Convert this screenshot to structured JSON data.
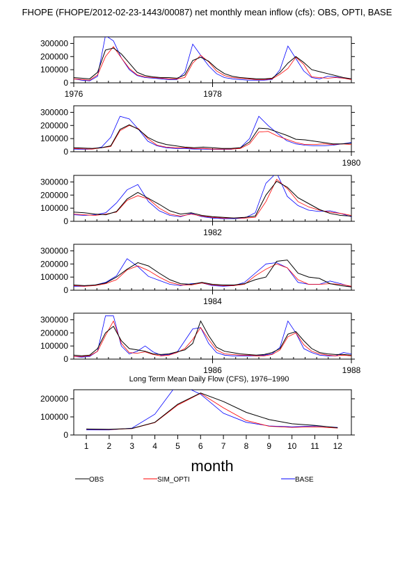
{
  "title": "FHOPE (FHOPE/2012-02-23-1443/00087) net monthly mean inflow (cfs): OBS, OPTI, BASE",
  "colors": {
    "obs": "#000000",
    "sim_opti": "#ff0000",
    "base": "#0000ff"
  },
  "chart_data": [
    {
      "type": "line",
      "panel": 1,
      "x_start": "1976-01",
      "x_tick_labels": [
        "1976",
        "1978"
      ],
      "ylim": [
        0,
        350000
      ],
      "y_ticks": [
        0,
        100000,
        200000,
        300000
      ],
      "y_tick_labels": [
        "0",
        "100000",
        "200000",
        "300000"
      ],
      "series": [
        {
          "name": "OBS",
          "values": [
            40000,
            35000,
            30000,
            80000,
            250000,
            265000,
            220000,
            150000,
            80000,
            55000,
            45000,
            40000,
            40000,
            35000,
            60000,
            170000,
            195000,
            165000,
            110000,
            70000,
            50000,
            40000,
            35000,
            30000,
            30000,
            35000,
            80000,
            150000,
            200000,
            155000,
            100000,
            85000,
            70000,
            55000,
            40000,
            30000
          ]
        },
        {
          "name": "SIM_OPTI",
          "values": [
            30000,
            25000,
            20000,
            60000,
            200000,
            275000,
            190000,
            110000,
            60000,
            45000,
            40000,
            35000,
            30000,
            30000,
            40000,
            150000,
            210000,
            160000,
            90000,
            55000,
            40000,
            35000,
            30000,
            25000,
            25000,
            30000,
            65000,
            110000,
            195000,
            140000,
            45000,
            40000,
            35000,
            40000,
            35000,
            25000
          ]
        },
        {
          "name": "BASE",
          "values": [
            30000,
            20000,
            15000,
            50000,
            360000,
            320000,
            190000,
            100000,
            55000,
            40000,
            35000,
            30000,
            25000,
            25000,
            80000,
            295000,
            210000,
            130000,
            70000,
            40000,
            30000,
            25000,
            20000,
            20000,
            20000,
            25000,
            100000,
            280000,
            185000,
            90000,
            40000,
            30000,
            50000,
            45000,
            35000,
            30000
          ]
        }
      ]
    },
    {
      "type": "line",
      "panel": 2,
      "x_start": "1979-01",
      "x_tick_labels": [
        "1980"
      ],
      "ylim": [
        0,
        350000
      ],
      "y_ticks": [
        0,
        100000,
        200000,
        300000
      ],
      "y_tick_labels": [
        "0",
        "100000",
        "200000",
        "300000"
      ],
      "series": [
        {
          "name": "OBS",
          "values": [
            30000,
            28000,
            25000,
            30000,
            45000,
            170000,
            205000,
            170000,
            110000,
            75000,
            55000,
            45000,
            35000,
            30000,
            35000,
            30000,
            25000,
            25000,
            30000,
            75000,
            180000,
            175000,
            150000,
            125000,
            95000,
            90000,
            80000,
            70000,
            60000,
            60000,
            65000
          ]
        },
        {
          "name": "SIM_OPTI",
          "values": [
            25000,
            22000,
            20000,
            30000,
            40000,
            160000,
            200000,
            175000,
            100000,
            50000,
            35000,
            30000,
            30000,
            25000,
            25000,
            20000,
            20000,
            20000,
            25000,
            60000,
            150000,
            155000,
            120000,
            95000,
            70000,
            55000,
            55000,
            60000,
            55000,
            60000,
            55000
          ]
        },
        {
          "name": "BASE",
          "values": [
            20000,
            18000,
            20000,
            35000,
            110000,
            270000,
            250000,
            170000,
            80000,
            45000,
            30000,
            25000,
            25000,
            20000,
            20000,
            18000,
            18000,
            18000,
            30000,
            100000,
            270000,
            200000,
            140000,
            85000,
            60000,
            50000,
            45000,
            45000,
            50000,
            60000,
            70000
          ]
        }
      ]
    },
    {
      "type": "line",
      "panel": 3,
      "x_start": "1981-07",
      "x_tick_labels": [
        "1982"
      ],
      "ylim": [
        0,
        350000
      ],
      "y_ticks": [
        0,
        100000,
        200000,
        300000
      ],
      "y_tick_labels": [
        "0",
        "100000",
        "200000",
        "300000"
      ],
      "series": [
        {
          "name": "OBS",
          "values": [
            70000,
            65000,
            55000,
            50000,
            75000,
            170000,
            220000,
            175000,
            130000,
            80000,
            55000,
            65000,
            45000,
            35000,
            30000,
            25000,
            30000,
            40000,
            200000,
            305000,
            260000,
            180000,
            135000,
            90000,
            60000,
            45000,
            40000
          ]
        },
        {
          "name": "SIM_OPTI",
          "values": [
            55000,
            50000,
            45000,
            55000,
            70000,
            160000,
            195000,
            170000,
            100000,
            55000,
            40000,
            55000,
            40000,
            30000,
            25000,
            25000,
            25000,
            30000,
            150000,
            320000,
            250000,
            150000,
            110000,
            85000,
            70000,
            60000,
            45000
          ]
        },
        {
          "name": "BASE",
          "values": [
            50000,
            45000,
            50000,
            65000,
            140000,
            240000,
            280000,
            150000,
            80000,
            45000,
            35000,
            60000,
            35000,
            25000,
            20000,
            20000,
            25000,
            65000,
            290000,
            370000,
            190000,
            120000,
            85000,
            75000,
            80000,
            60000,
            35000
          ]
        }
      ]
    },
    {
      "type": "line",
      "panel": 4,
      "x_start": "1983-07",
      "x_tick_labels": [
        "1984"
      ],
      "ylim": [
        0,
        350000
      ],
      "y_ticks": [
        0,
        100000,
        200000,
        300000
      ],
      "y_tick_labels": [
        "0",
        "100000",
        "200000",
        "300000"
      ],
      "series": [
        {
          "name": "OBS",
          "values": [
            40000,
            35000,
            40000,
            55000,
            100000,
            160000,
            210000,
            185000,
            130000,
            80000,
            50000,
            45000,
            60000,
            45000,
            40000,
            40000,
            50000,
            80000,
            100000,
            220000,
            230000,
            130000,
            100000,
            90000,
            50000,
            35000,
            25000
          ]
        },
        {
          "name": "SIM_OPTI",
          "values": [
            35000,
            30000,
            35000,
            50000,
            80000,
            155000,
            185000,
            150000,
            100000,
            60000,
            40000,
            40000,
            55000,
            40000,
            35000,
            35000,
            45000,
            110000,
            160000,
            200000,
            170000,
            80000,
            45000,
            45000,
            50000,
            45000,
            30000
          ]
        },
        {
          "name": "BASE",
          "values": [
            30000,
            30000,
            40000,
            60000,
            110000,
            240000,
            180000,
            105000,
            75000,
            45000,
            35000,
            50000,
            55000,
            35000,
            30000,
            35000,
            60000,
            130000,
            200000,
            210000,
            170000,
            60000,
            45000,
            45000,
            70000,
            50000,
            25000
          ]
        }
      ]
    },
    {
      "type": "line",
      "panel": 5,
      "x_start": "1985-01",
      "x_tick_labels": [
        "1986",
        "1988"
      ],
      "ylim": [
        0,
        350000
      ],
      "y_ticks": [
        0,
        100000,
        200000,
        300000
      ],
      "y_tick_labels": [
        "0",
        "100000",
        "200000",
        "300000"
      ],
      "series": [
        {
          "name": "OBS",
          "values": [
            30000,
            25000,
            30000,
            80000,
            200000,
            250000,
            140000,
            80000,
            70000,
            60000,
            40000,
            35000,
            40000,
            55000,
            70000,
            120000,
            290000,
            180000,
            90000,
            60000,
            50000,
            40000,
            35000,
            30000,
            35000,
            50000,
            80000,
            190000,
            210000,
            140000,
            80000,
            50000,
            40000,
            35000,
            35000,
            30000
          ]
        },
        {
          "name": "SIM_OPTI",
          "values": [
            20000,
            20000,
            25000,
            60000,
            180000,
            290000,
            120000,
            50000,
            45000,
            55000,
            35000,
            25000,
            30000,
            50000,
            80000,
            150000,
            240000,
            150000,
            70000,
            40000,
            35000,
            30000,
            30000,
            25000,
            25000,
            35000,
            70000,
            170000,
            200000,
            110000,
            60000,
            40000,
            30000,
            25000,
            30000,
            25000
          ]
        },
        {
          "name": "BASE",
          "values": [
            20000,
            15000,
            20000,
            60000,
            330000,
            330000,
            100000,
            40000,
            60000,
            100000,
            55000,
            30000,
            35000,
            50000,
            140000,
            230000,
            240000,
            120000,
            50000,
            30000,
            25000,
            25000,
            25000,
            25000,
            30000,
            40000,
            90000,
            290000,
            200000,
            80000,
            50000,
            30000,
            25000,
            25000,
            50000,
            40000
          ]
        }
      ]
    },
    {
      "type": "line",
      "panel": 6,
      "title": "Long Term Mean Daily Flow (CFS), 1976–1990",
      "xlabel": "month",
      "categories": [
        1,
        2,
        3,
        4,
        5,
        6,
        7,
        8,
        9,
        10,
        11,
        12
      ],
      "x_tick_labels": [
        "1",
        "2",
        "3",
        "4",
        "5",
        "6",
        "7",
        "8",
        "9",
        "10",
        "11",
        "12"
      ],
      "ylim": [
        0,
        250000
      ],
      "y_ticks": [
        0,
        100000,
        200000
      ],
      "y_tick_labels": [
        "0",
        "100000",
        "200000"
      ],
      "legend_position": "bottom",
      "series": [
        {
          "name": "OBS",
          "values": [
            33000,
            31000,
            36000,
            70000,
            170000,
            232000,
            185000,
            125000,
            85000,
            62000,
            53000,
            40000
          ]
        },
        {
          "name": "SIM_OPTI",
          "values": [
            32000,
            30000,
            35000,
            68000,
            165000,
            230000,
            150000,
            80000,
            48000,
            42000,
            45000,
            38000
          ]
        },
        {
          "name": "BASE",
          "values": [
            28000,
            28000,
            38000,
            115000,
            285000,
            225000,
            120000,
            70000,
            50000,
            45000,
            50000,
            42000
          ]
        }
      ]
    }
  ]
}
